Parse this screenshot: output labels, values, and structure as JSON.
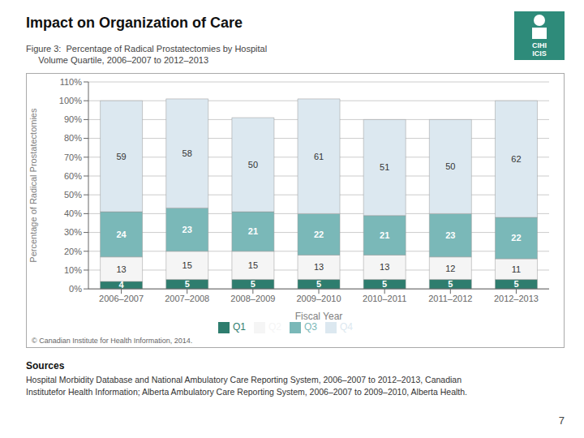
{
  "chart_data": {
    "type": "bar",
    "title": "Impact on Organization of Care",
    "subtitle": [
      "Figure 3:  Percentage of Radical Prostatectomies by Hospital",
      "     Volume Quartile, 2006–2007 to 2012–2013"
    ],
    "xlabel": "Fiscal Year",
    "ylabel": "Percentage of Radical Prostatectomies",
    "categories": [
      "2006–2007",
      "2007–2008",
      "2008–2009",
      "2009–2010",
      "2010–2011",
      "2011–2012",
      "2012–2013"
    ],
    "series": [
      {
        "name": "Q1",
        "color": "#2e7d6e",
        "values": [
          4,
          5,
          5,
          5,
          5,
          5,
          5
        ]
      },
      {
        "name": "Q2",
        "color": "#f5f5f5",
        "values": [
          13,
          15,
          15,
          13,
          13,
          12,
          11
        ]
      },
      {
        "name": "Q3",
        "color": "#7ab8b8",
        "values": [
          24,
          23,
          21,
          22,
          21,
          23,
          22
        ]
      },
      {
        "name": "Q4",
        "color": "#dce8f0",
        "values": [
          59,
          58,
          50,
          61,
          51,
          50,
          62
        ]
      }
    ],
    "stacked": true,
    "data_labels": true,
    "ylim": [
      0,
      110
    ],
    "yticks": [
      {
        "value": 0,
        "label": "0%"
      },
      {
        "value": 10,
        "label": "10%"
      },
      {
        "value": 20,
        "label": "20%"
      },
      {
        "value": 30,
        "label": "30%"
      },
      {
        "value": 40,
        "label": "40%"
      },
      {
        "value": 50,
        "label": "50%"
      },
      {
        "value": 60,
        "label": "60%"
      },
      {
        "value": 70,
        "label": "70%"
      },
      {
        "value": 80,
        "label": "80%"
      },
      {
        "value": 90,
        "label": "90%"
      },
      {
        "value": 100,
        "label": "100%"
      },
      {
        "value": 110,
        "label": "110%"
      }
    ],
    "grid": true,
    "legend": "bottom",
    "annotations": [
      "© Canadian Institute for Health Information, 2014.",
      "Sources",
      "Hospital Morbidity Database and National Ambulatory Care Reporting System, 2006–2007 to 2012–2013, Canadian",
      "Institutefor Health Information; Alberta Ambulatory Care Reporting System, 2006–2007 to 2009–2010, Alberta Health.",
      "7",
      "CIHI",
      "ICIS"
    ]
  }
}
